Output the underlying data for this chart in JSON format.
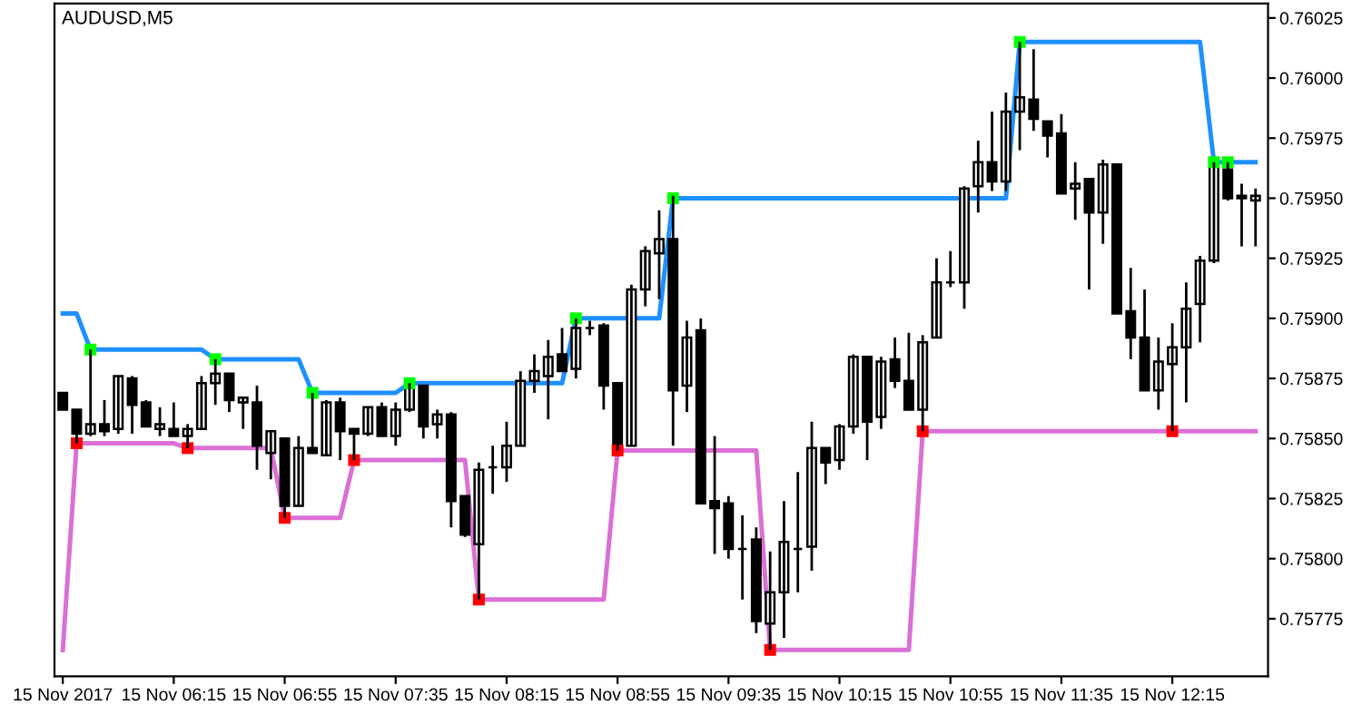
{
  "chart_data": {
    "type": "candlestick",
    "title": "AUDUSD,M5",
    "categories": [
      "15 Nov 2017",
      null,
      null,
      null,
      null,
      null,
      null,
      null,
      "15 Nov 06:15",
      null,
      null,
      null,
      null,
      null,
      null,
      null,
      "15 Nov 06:55",
      null,
      null,
      null,
      null,
      null,
      null,
      null,
      "15 Nov 07:35",
      null,
      null,
      null,
      null,
      null,
      null,
      null,
      "15 Nov 08:15",
      null,
      null,
      null,
      null,
      null,
      null,
      null,
      "15 Nov 08:55",
      null,
      null,
      null,
      null,
      null,
      null,
      null,
      "15 Nov 09:35",
      null,
      null,
      null,
      null,
      null,
      null,
      null,
      "15 Nov 10:15",
      null,
      null,
      null,
      null,
      null,
      null,
      null,
      "15 Nov 10:55",
      null,
      null,
      null,
      null,
      null,
      null,
      null,
      "15 Nov 11:35",
      null,
      null,
      null,
      null,
      null,
      null,
      null,
      "15 Nov 12:15",
      null,
      null,
      null,
      null,
      null,
      null
    ],
    "ohlc": [
      [
        0.75869,
        0.75869,
        0.75862,
        0.75862
      ],
      [
        0.75862,
        0.75862,
        0.75848,
        0.75852
      ],
      [
        0.75852,
        0.75887,
        0.75851,
        0.75856
      ],
      [
        0.75856,
        0.75866,
        0.75851,
        0.75853
      ],
      [
        0.75854,
        0.75876,
        0.75852,
        0.75876
      ],
      [
        0.75875,
        0.75876,
        0.75852,
        0.75864
      ],
      [
        0.75865,
        0.75866,
        0.75855,
        0.75855
      ],
      [
        0.75854,
        0.75863,
        0.75851,
        0.75856
      ],
      [
        0.75854,
        0.75865,
        0.75851,
        0.75851
      ],
      [
        0.75851,
        0.75856,
        0.75846,
        0.75854
      ],
      [
        0.75854,
        0.75876,
        0.75854,
        0.75873
      ],
      [
        0.75873,
        0.75883,
        0.75864,
        0.75877
      ],
      [
        0.75877,
        0.75877,
        0.75861,
        0.75866
      ],
      [
        0.75865,
        0.75867,
        0.75854,
        0.75867
      ],
      [
        0.75865,
        0.75872,
        0.75837,
        0.75847
      ],
      [
        0.75844,
        0.75853,
        0.75833,
        0.75853
      ],
      [
        0.7585,
        0.7585,
        0.75817,
        0.75822
      ],
      [
        0.75822,
        0.75851,
        0.75822,
        0.75846
      ],
      [
        0.75846,
        0.75869,
        0.75844,
        0.75844
      ],
      [
        0.75843,
        0.75866,
        0.75843,
        0.75865
      ],
      [
        0.75865,
        0.75867,
        0.75841,
        0.75853
      ],
      [
        0.75854,
        0.75854,
        0.75841,
        0.75852
      ],
      [
        0.75852,
        0.75863,
        0.75851,
        0.75863
      ],
      [
        0.75863,
        0.75865,
        0.75851,
        0.75851
      ],
      [
        0.75851,
        0.75865,
        0.75847,
        0.75862
      ],
      [
        0.75862,
        0.75873,
        0.75861,
        0.75872
      ],
      [
        0.75872,
        0.75872,
        0.7585,
        0.75855
      ],
      [
        0.75856,
        0.75862,
        0.7585,
        0.7586
      ],
      [
        0.7586,
        0.75861,
        0.75813,
        0.75824
      ],
      [
        0.75826,
        0.75826,
        0.75809,
        0.7581
      ],
      [
        0.75806,
        0.7584,
        0.75783,
        0.75837
      ],
      [
        0.75838,
        0.75847,
        0.75827,
        0.75838
      ],
      [
        0.75838,
        0.75857,
        0.75832,
        0.75847
      ],
      [
        0.75847,
        0.75878,
        0.75847,
        0.75874
      ],
      [
        0.75874,
        0.75885,
        0.75869,
        0.75878
      ],
      [
        0.75876,
        0.75891,
        0.75858,
        0.75884
      ],
      [
        0.75885,
        0.75896,
        0.75878,
        0.75878
      ],
      [
        0.75879,
        0.759,
        0.75875,
        0.75896
      ],
      [
        0.75896,
        0.75899,
        0.75893,
        0.75896
      ],
      [
        0.75897,
        0.75898,
        0.75862,
        0.75872
      ],
      [
        0.75873,
        0.75873,
        0.75845,
        0.75845
      ],
      [
        0.75847,
        0.75914,
        0.75847,
        0.75912
      ],
      [
        0.75912,
        0.7593,
        0.75905,
        0.75928
      ],
      [
        0.75927,
        0.75945,
        0.75908,
        0.75933
      ],
      [
        0.75933,
        0.75951,
        0.75847,
        0.7587
      ],
      [
        0.75872,
        0.75899,
        0.75861,
        0.75892
      ],
      [
        0.75895,
        0.759,
        0.75823,
        0.75823
      ],
      [
        0.75824,
        0.75851,
        0.75802,
        0.75821
      ],
      [
        0.75823,
        0.75826,
        0.758,
        0.75804
      ],
      [
        0.75804,
        0.75818,
        0.75783,
        0.75804
      ],
      [
        0.75808,
        0.75813,
        0.75769,
        0.75774
      ],
      [
        0.75773,
        0.75803,
        0.75762,
        0.75786
      ],
      [
        0.75786,
        0.75824,
        0.75767,
        0.75807
      ],
      [
        0.75804,
        0.75836,
        0.75786,
        0.75804
      ],
      [
        0.75805,
        0.75857,
        0.75795,
        0.75846
      ],
      [
        0.75846,
        0.75846,
        0.75831,
        0.7584
      ],
      [
        0.75841,
        0.75856,
        0.75837,
        0.75855
      ],
      [
        0.75855,
        0.75885,
        0.75852,
        0.75884
      ],
      [
        0.75884,
        0.75884,
        0.75841,
        0.75857
      ],
      [
        0.75859,
        0.75884,
        0.75854,
        0.75882
      ],
      [
        0.75883,
        0.75892,
        0.75871,
        0.75874
      ],
      [
        0.75874,
        0.75894,
        0.75862,
        0.75862
      ],
      [
        0.75862,
        0.75893,
        0.75853,
        0.7589
      ],
      [
        0.75892,
        0.75925,
        0.75892,
        0.75915
      ],
      [
        0.75915,
        0.75928,
        0.75913,
        0.75915
      ],
      [
        0.75915,
        0.75955,
        0.75904,
        0.75954
      ],
      [
        0.75955,
        0.75974,
        0.75944,
        0.75965
      ],
      [
        0.75965,
        0.75986,
        0.75953,
        0.75957
      ],
      [
        0.75957,
        0.75994,
        0.75953,
        0.75986
      ],
      [
        0.75986,
        0.76015,
        0.7597,
        0.75992
      ],
      [
        0.75991,
        0.76012,
        0.75978,
        0.75983
      ],
      [
        0.75982,
        0.75982,
        0.75967,
        0.75976
      ],
      [
        0.75977,
        0.75985,
        0.75952,
        0.75952
      ],
      [
        0.75954,
        0.75965,
        0.75941,
        0.75956
      ],
      [
        0.75958,
        0.75958,
        0.75912,
        0.75944
      ],
      [
        0.75944,
        0.75966,
        0.75931,
        0.75964
      ],
      [
        0.75964,
        0.75964,
        0.75902,
        0.75902
      ],
      [
        0.75903,
        0.75921,
        0.75883,
        0.75892
      ],
      [
        0.75892,
        0.75912,
        0.7587,
        0.7587
      ],
      [
        0.7587,
        0.75892,
        0.75862,
        0.75882
      ],
      [
        0.75881,
        0.75898,
        0.75853,
        0.75888
      ],
      [
        0.75888,
        0.75915,
        0.75865,
        0.75904
      ],
      [
        0.75906,
        0.75926,
        0.7589,
        0.75924
      ],
      [
        0.75924,
        0.75965,
        0.75923,
        0.75964
      ],
      [
        0.75962,
        0.75965,
        0.75949,
        0.7595
      ],
      [
        0.75951,
        0.75956,
        0.7593,
        0.7595
      ],
      [
        0.75949,
        0.75954,
        0.7593,
        0.75951
      ]
    ],
    "series": [
      {
        "type": "line",
        "color": "#1e90ff",
        "values": [
          0.75902,
          0.75902,
          0.75887,
          0.75887,
          0.75887,
          0.75887,
          0.75887,
          0.75887,
          0.75887,
          0.75887,
          0.75887,
          0.75883,
          0.75883,
          0.75883,
          0.75883,
          0.75883,
          0.75883,
          0.75883,
          0.75869,
          0.75869,
          0.75869,
          0.75869,
          0.75869,
          0.75869,
          0.75869,
          0.75873,
          0.75873,
          0.75873,
          0.75873,
          0.75873,
          0.75873,
          0.75873,
          0.75873,
          0.75873,
          0.75873,
          0.75873,
          0.75873,
          0.759,
          0.759,
          0.759,
          0.759,
          0.759,
          0.759,
          0.759,
          0.7595,
          0.7595,
          0.7595,
          0.7595,
          0.7595,
          0.7595,
          0.7595,
          0.7595,
          0.7595,
          0.7595,
          0.7595,
          0.7595,
          0.7595,
          0.7595,
          0.7595,
          0.7595,
          0.7595,
          0.7595,
          0.7595,
          0.7595,
          0.7595,
          0.7595,
          0.7595,
          0.7595,
          0.7595,
          0.76015,
          0.76015,
          0.76015,
          0.76015,
          0.76015,
          0.76015,
          0.76015,
          0.76015,
          0.76015,
          0.76015,
          0.76015,
          0.76015,
          0.76015,
          0.76015,
          0.75965,
          0.75965,
          0.75965,
          0.75965
        ]
      },
      {
        "type": "line",
        "color": "#da70d6",
        "values": [
          0.75762,
          0.75848,
          0.75848,
          0.75848,
          0.75848,
          0.75848,
          0.75848,
          0.75848,
          0.75848,
          0.75846,
          0.75846,
          0.75846,
          0.75846,
          0.75846,
          0.75846,
          0.75846,
          0.75817,
          0.75817,
          0.75817,
          0.75817,
          0.75817,
          0.75841,
          0.75841,
          0.75841,
          0.75841,
          0.75841,
          0.75841,
          0.75841,
          0.75841,
          0.75841,
          0.75783,
          0.75783,
          0.75783,
          0.75783,
          0.75783,
          0.75783,
          0.75783,
          0.75783,
          0.75783,
          0.75783,
          0.75845,
          0.75845,
          0.75845,
          0.75845,
          0.75845,
          0.75845,
          0.75845,
          0.75845,
          0.75845,
          0.75845,
          0.75845,
          0.75762,
          0.75762,
          0.75762,
          0.75762,
          0.75762,
          0.75762,
          0.75762,
          0.75762,
          0.75762,
          0.75762,
          0.75762,
          0.75853,
          0.75853,
          0.75853,
          0.75853,
          0.75853,
          0.75853,
          0.75853,
          0.75853,
          0.75853,
          0.75853,
          0.75853,
          0.75853,
          0.75853,
          0.75853,
          0.75853,
          0.75853,
          0.75853,
          0.75853,
          0.75853,
          0.75853,
          0.75853,
          0.75853,
          0.75853,
          0.75853,
          0.75853
        ]
      },
      {
        "type": "scatter",
        "marker": "square",
        "color": "#00ff00",
        "values": [
          null,
          null,
          0.75887,
          null,
          null,
          null,
          null,
          null,
          null,
          null,
          null,
          0.75883,
          null,
          null,
          null,
          null,
          null,
          null,
          0.75869,
          null,
          null,
          null,
          null,
          null,
          null,
          0.75873,
          null,
          null,
          null,
          null,
          null,
          null,
          null,
          null,
          null,
          null,
          null,
          0.759,
          null,
          null,
          null,
          null,
          null,
          null,
          0.7595,
          null,
          null,
          null,
          null,
          null,
          null,
          null,
          null,
          null,
          null,
          null,
          null,
          null,
          null,
          null,
          null,
          null,
          null,
          null,
          null,
          null,
          null,
          null,
          null,
          0.76015,
          null,
          null,
          null,
          null,
          null,
          null,
          null,
          null,
          null,
          null,
          null,
          null,
          null,
          0.75965,
          0.75965,
          null,
          null
        ]
      },
      {
        "type": "scatter",
        "marker": "square",
        "color": "#ff0000",
        "values": [
          null,
          0.75848,
          null,
          null,
          null,
          null,
          null,
          null,
          null,
          0.75846,
          null,
          null,
          null,
          null,
          null,
          null,
          0.75817,
          null,
          null,
          null,
          null,
          0.75841,
          null,
          null,
          null,
          null,
          null,
          null,
          null,
          null,
          0.75783,
          null,
          null,
          null,
          null,
          null,
          null,
          null,
          null,
          null,
          0.75845,
          null,
          null,
          null,
          null,
          null,
          null,
          null,
          null,
          null,
          null,
          0.75762,
          null,
          null,
          null,
          null,
          null,
          null,
          null,
          null,
          null,
          null,
          0.75853,
          null,
          null,
          null,
          null,
          null,
          null,
          null,
          null,
          null,
          null,
          null,
          null,
          null,
          null,
          null,
          null,
          null,
          0.75853,
          null,
          null,
          null,
          null,
          null,
          null
        ]
      }
    ],
    "ylim": [
      0.75751,
      0.76031
    ],
    "yticks": [
      0.75775,
      {
        "value": 0.758,
        "label": "0.75800"
      },
      0.75825,
      {
        "value": 0.7585,
        "label": "0.75850"
      },
      0.75875,
      {
        "value": 0.759,
        "label": "0.75900"
      },
      0.75925,
      {
        "value": 0.7595,
        "label": "0.75950"
      },
      0.75975,
      {
        "value": 0.76,
        "label": "0.76000"
      },
      0.76025
    ]
  }
}
